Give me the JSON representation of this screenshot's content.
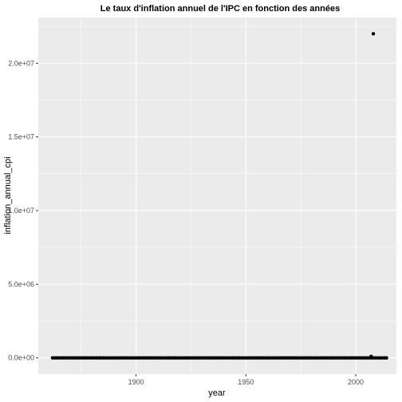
{
  "chart_data": {
    "type": "scatter",
    "title": "Le taux d'inflation annuel de l'IPC en fonction des années",
    "xlabel": "year",
    "ylabel": "inflation_annual_cpi",
    "xlim": [
      1855.5,
      2018.5
    ],
    "ylim": [
      -1100000,
      23100000
    ],
    "x_ticks": [
      1900,
      1950,
      2000
    ],
    "x_tick_labels": [
      "1900",
      "1950",
      "2000"
    ],
    "y_ticks": [
      0,
      5000000,
      10000000,
      15000000,
      20000000
    ],
    "y_tick_labels": [
      "0.0e+00",
      "5.0e+06",
      "1.0e+07",
      "1.5e+07",
      "2.0e+07"
    ],
    "grid": true,
    "baseline_points": {
      "x_start": 1862,
      "x_end": 2014,
      "y": 0
    },
    "points": [
      {
        "x": 2008,
        "y": 22000000
      },
      {
        "x": 2007,
        "y": 100000
      }
    ],
    "colors": {
      "panel": "#ebebeb",
      "grid_major": "#ffffff",
      "point": "#000000"
    }
  }
}
